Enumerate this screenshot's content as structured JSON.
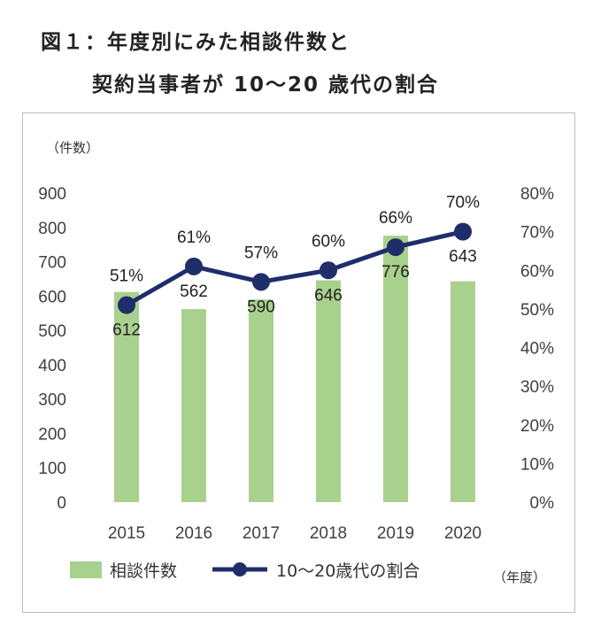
{
  "title": {
    "line1": "図１：年度別にみた相談件数と",
    "line2": "契約当事者が 10〜20 歳代の割合"
  },
  "chart_data": {
    "type": "bar",
    "categories": [
      "2015",
      "2016",
      "2017",
      "2018",
      "2019",
      "2020"
    ],
    "series": [
      {
        "name": "相談件数",
        "type": "bar",
        "axis": "left",
        "values": [
          612,
          562,
          590,
          646,
          776,
          643
        ],
        "labels": [
          "612",
          "562",
          "590",
          "646",
          "776",
          "643"
        ],
        "color": "#a9d18e"
      },
      {
        "name": "10〜20歳代の割合",
        "type": "line",
        "axis": "right",
        "values": [
          51,
          61,
          57,
          60,
          66,
          70
        ],
        "labels": [
          "51%",
          "61%",
          "57%",
          "60%",
          "66%",
          "70%"
        ],
        "color": "#1f2d6b"
      }
    ],
    "y_left": {
      "unit_label": "（件数）",
      "min": 0,
      "max": 900,
      "ticks": [
        "0",
        "100",
        "200",
        "300",
        "400",
        "500",
        "600",
        "700",
        "800",
        "900"
      ]
    },
    "y_right": {
      "min": 0,
      "max": 80,
      "ticks": [
        "0%",
        "10%",
        "20%",
        "30%",
        "40%",
        "50%",
        "60%",
        "70%",
        "80%"
      ]
    },
    "x_unit_label": "（年度）",
    "grid": false,
    "legend_position": "bottom-left"
  }
}
